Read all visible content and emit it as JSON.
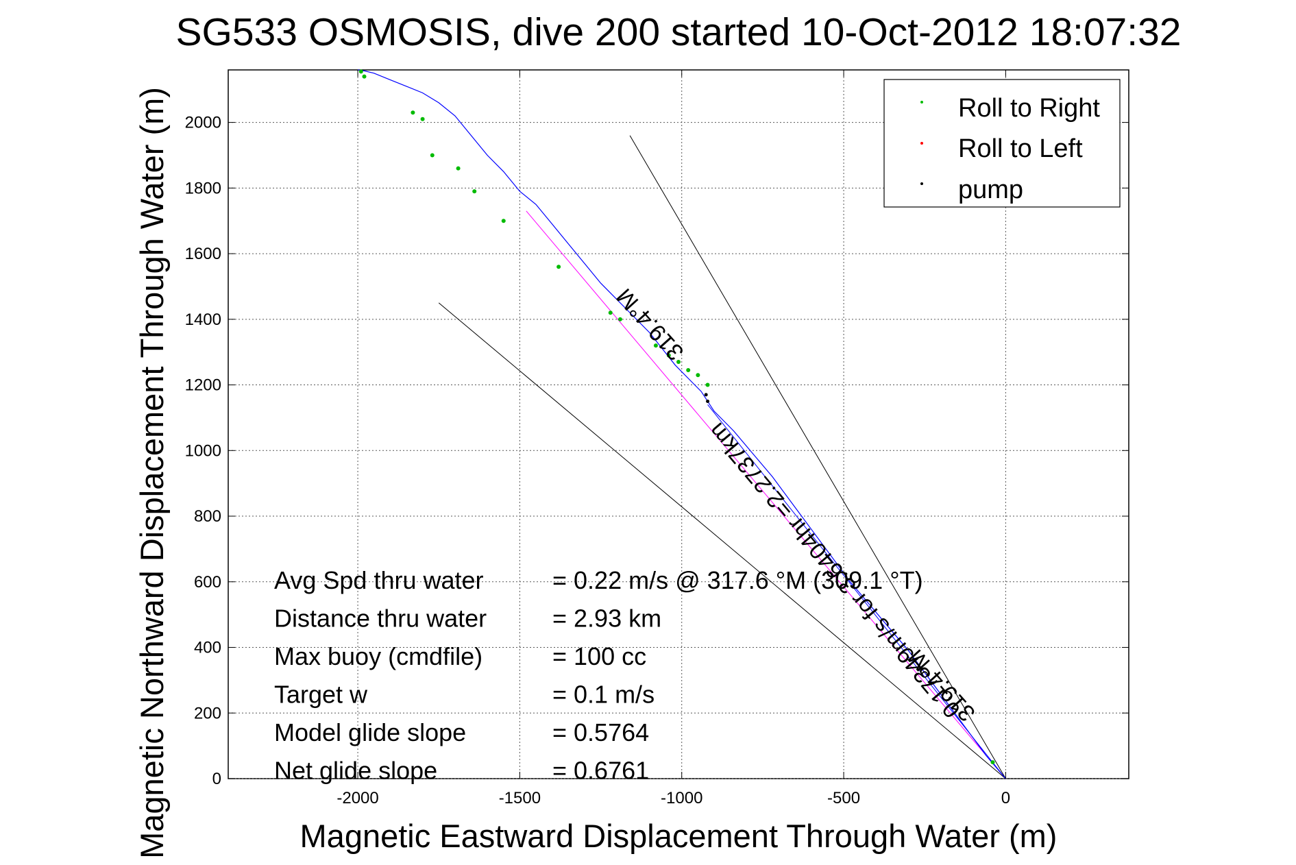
{
  "chart_data": {
    "type": "scatter",
    "title": "SG533 OSMOSIS, dive 200 started 10-Oct-2012 18:07:32",
    "xlabel": "Magnetic Eastward Displacement Through Water (m)",
    "ylabel": "Magnetic Northward Displacement Through Water (m)",
    "xlim": [
      -2400,
      380
    ],
    "ylim": [
      0,
      2160
    ],
    "x_ticks": [
      -2000,
      -1500,
      -1000,
      -500,
      0
    ],
    "x_tick_labels": [
      "-2000",
      "-1500",
      "-1000",
      "-500",
      "0"
    ],
    "y_ticks": [
      0,
      200,
      400,
      600,
      800,
      1000,
      1200,
      1400,
      1600,
      1800,
      2000
    ],
    "y_tick_labels": [
      "0",
      "200",
      "400",
      "600",
      "800",
      "1000",
      "1200",
      "1400",
      "1600",
      "1800",
      "2000"
    ],
    "grid": true,
    "legend_position": "top-right",
    "legend": [
      {
        "label": "Roll to Right",
        "color": "#00bb00"
      },
      {
        "label": "Roll to Left",
        "color": "#ff0000"
      },
      {
        "label": "pump",
        "color": "#000000"
      }
    ],
    "track": {
      "color": "#0000ff",
      "x": [
        0,
        -60,
        -120,
        -180,
        -240,
        -300,
        -360,
        -420,
        -480,
        -540,
        -600,
        -660,
        -720,
        -780,
        -840,
        -900,
        -940,
        -980,
        -1020,
        -1060,
        -1100,
        -1150,
        -1200,
        -1250,
        -1300,
        -1350,
        -1400,
        -1450,
        -1500,
        -1550,
        -1600,
        -1650,
        -1700,
        -1750,
        -1800,
        -1850,
        -1900,
        -1950,
        -1980,
        -2000
      ],
      "y": [
        0,
        70,
        150,
        230,
        310,
        390,
        460,
        530,
        600,
        680,
        760,
        840,
        920,
        990,
        1060,
        1120,
        1180,
        1220,
        1260,
        1310,
        1360,
        1410,
        1460,
        1510,
        1570,
        1630,
        1690,
        1750,
        1790,
        1850,
        1900,
        1960,
        2020,
        2060,
        2090,
        2110,
        2130,
        2150,
        2157,
        2160
      ]
    },
    "roll_right": {
      "color": "#00bb00",
      "x": [
        -40,
        -920,
        -950,
        -980,
        -1010,
        -1040,
        -1080,
        -1190,
        -1220,
        -1380,
        -1550,
        -1640,
        -1690,
        -1770,
        -1800,
        -1830,
        -1980,
        -1990
      ],
      "y": [
        50,
        1200,
        1230,
        1245,
        1270,
        1290,
        1320,
        1400,
        1420,
        1560,
        1700,
        1790,
        1860,
        1900,
        2010,
        2030,
        2140,
        2155
      ]
    },
    "roll_left": {
      "color": "#ff0000",
      "x": [],
      "y": []
    },
    "pump": {
      "color": "#000000",
      "x": [
        -920,
        -925
      ],
      "y": [
        1150,
        1170
      ]
    },
    "lines": [
      {
        "name": "heading-line",
        "color": "#ff00ff",
        "x": [
          -1480,
          0
        ],
        "y": [
          1730,
          0
        ]
      },
      {
        "name": "current-direction-line",
        "color": "#0000ff",
        "x": [
          -920,
          0
        ],
        "y": [
          1140,
          0
        ]
      },
      {
        "name": "glide-bound-upper",
        "color": "#000000",
        "x": [
          -1160,
          0
        ],
        "y": [
          1960,
          0
        ]
      },
      {
        "name": "glide-bound-lower",
        "color": "#000000",
        "x": [
          -1750,
          0
        ],
        "y": [
          1450,
          0
        ]
      }
    ],
    "annotations": [
      {
        "text": "319.4°M",
        "x": -1080,
        "y": 1400,
        "rotation": 228
      },
      {
        "text": "0.17349m/s for 3.6404hr =2.2737km",
        "x": -510,
        "y": 650,
        "rotation": 230
      },
      {
        "text": "319.4°M",
        "x": -180,
        "y": 300,
        "rotation": 228
      }
    ],
    "stats": [
      {
        "label": "Avg Spd thru water",
        "value": "=  0.22 m/s @ 317.6 °M (309.1 °T)"
      },
      {
        "label": "Distance thru water",
        "value": "=  2.93 km"
      },
      {
        "label": "Max buoy (cmdfile)",
        "value": "= 100 cc"
      },
      {
        "label": "Target w",
        "value": "= 0.1 m/s"
      },
      {
        "label": "Model glide slope",
        "value": "= 0.5764"
      },
      {
        "label": "Net glide slope",
        "value": "= 0.6761"
      }
    ]
  }
}
